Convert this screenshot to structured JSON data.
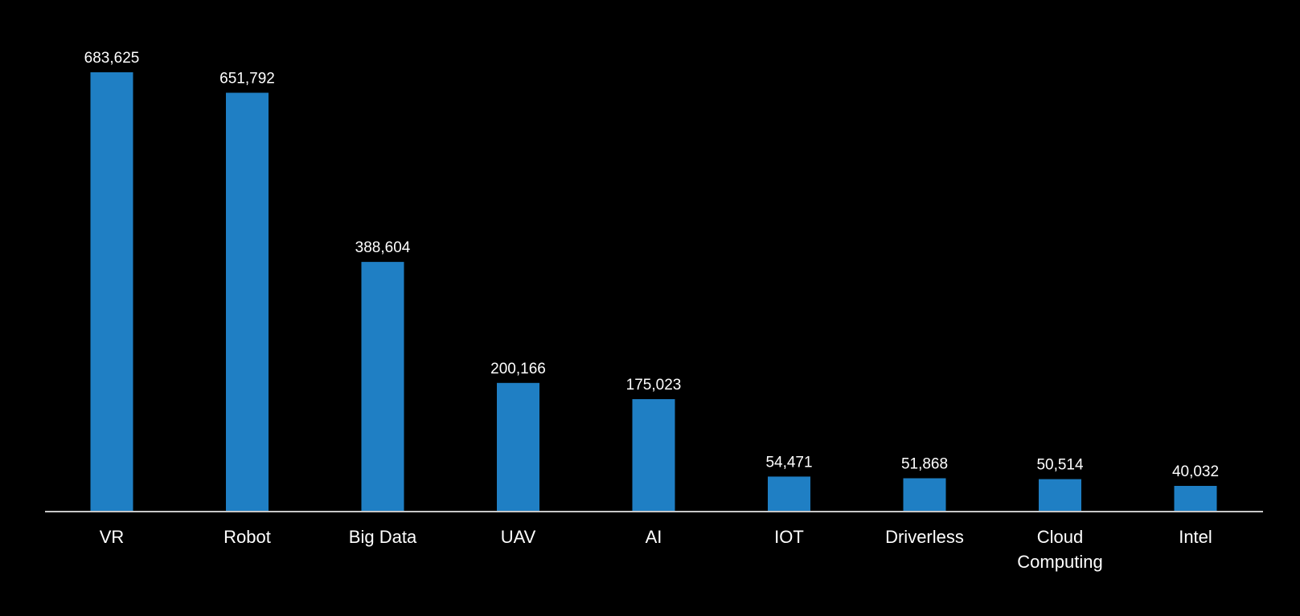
{
  "chart_data": {
    "type": "bar",
    "title": "",
    "xlabel": "",
    "ylabel": "",
    "categories": [
      "VR",
      "Robot",
      "Big Data",
      "UAV",
      "AI",
      "IOT",
      "Driverless",
      "Cloud Computing",
      "Intel"
    ],
    "category_label_lines": [
      [
        "VR"
      ],
      [
        "Robot"
      ],
      [
        "Big Data"
      ],
      [
        "UAV"
      ],
      [
        "AI"
      ],
      [
        "IOT"
      ],
      [
        "Driverless"
      ],
      [
        "Cloud",
        "Computing"
      ],
      [
        "Intel"
      ]
    ],
    "values": [
      683625,
      651792,
      388604,
      200166,
      175023,
      54471,
      51868,
      50514,
      40032
    ],
    "value_labels": [
      "683,625",
      "651,792",
      "388,604",
      "200,166",
      "175,023",
      "54,471",
      "51,868",
      "50,514",
      "40,032"
    ],
    "ylim": [
      0,
      683625
    ],
    "grid": false,
    "legend": "none",
    "colors": {
      "background": "#000000",
      "bar": "#1f7fc4",
      "axis": "#c8c8c8",
      "text": "#ffffff"
    }
  }
}
